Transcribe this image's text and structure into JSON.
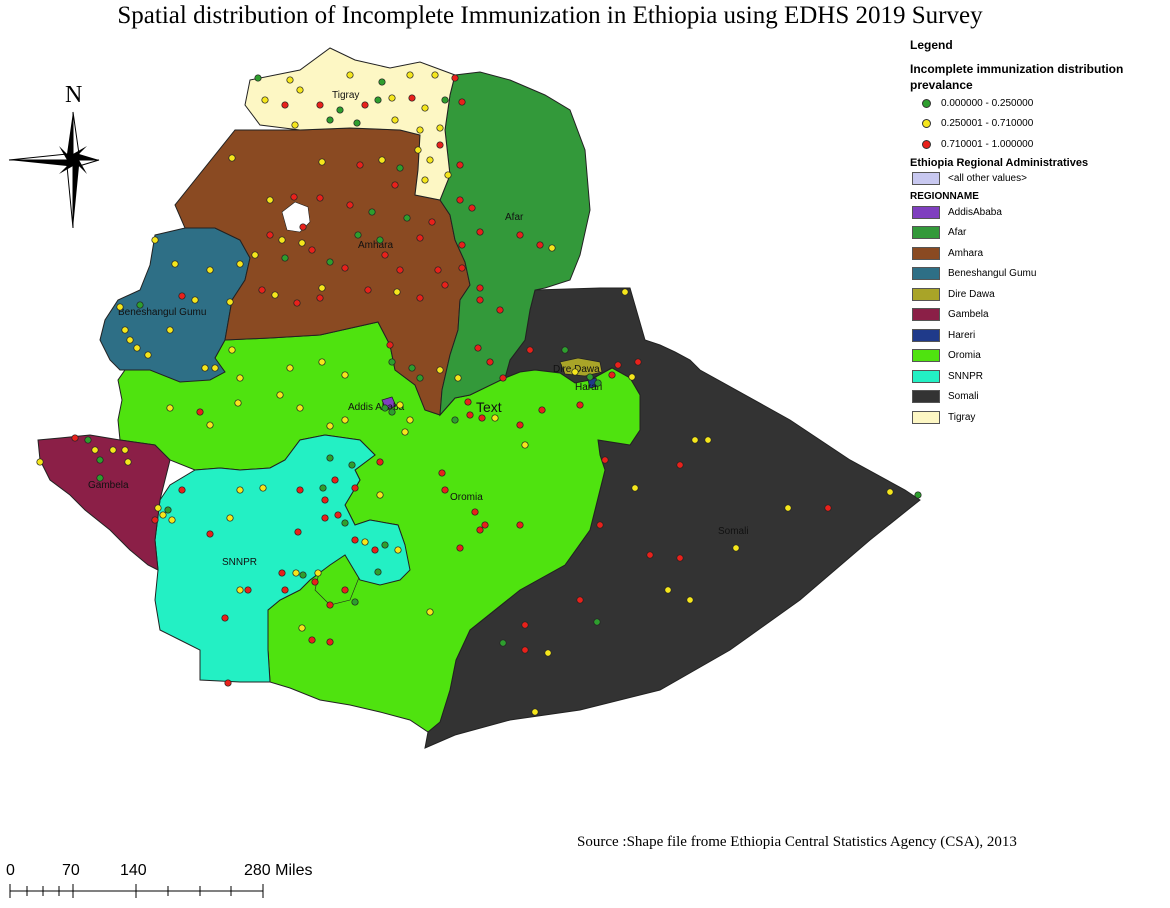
{
  "title": "Spatial distribution of Incomplete Immunization in Ethiopia using EDHS 2019 Survey",
  "north_label": "N",
  "source": "Source :Shape file frome Ethiopia Central Statistics Agency (CSA), 2013",
  "scale_bar": {
    "labels": [
      "0",
      "70",
      "140",
      "280 Miles"
    ],
    "unit": "Miles"
  },
  "legend": {
    "title": "Legend",
    "points_title": "Incomplete immunization distribution",
    "points_subtitle": "prevalance",
    "classes": [
      {
        "label": "0.000000 - 0.250000",
        "color": "#2e9e2e"
      },
      {
        "label": "0.250001 - 0.710000",
        "color": "#f5e61c"
      },
      {
        "label": "0.710001 - 1.000000",
        "color": "#e8211b"
      }
    ],
    "layer_title": "Ethiopia Regional Administratives",
    "other_values": {
      "label": "<all other values>",
      "color": "#c8c8f0"
    },
    "field_name": "REGIONNAME",
    "regions": [
      {
        "label": "AddisAbaba",
        "color": "#7f3fbf"
      },
      {
        "label": "Afar",
        "color": "#33993a"
      },
      {
        "label": "Amhara",
        "color": "#8a4a22"
      },
      {
        "label": "Beneshangul Gumu",
        "color": "#2e6f86"
      },
      {
        "label": "Dire Dawa",
        "color": "#a9a428"
      },
      {
        "label": "Gambela",
        "color": "#8b1f47"
      },
      {
        "label": "Hareri",
        "color": "#1f3a8a"
      },
      {
        "label": "Oromia",
        "color": "#4fe30f"
      },
      {
        "label": "SNNPR",
        "color": "#23f0c4"
      },
      {
        "label": "Somali",
        "color": "#333333"
      },
      {
        "label": "Tigray",
        "color": "#fdf7c4"
      }
    ]
  },
  "map_labels": {
    "tigray": "Tigray",
    "afar": "Afar",
    "amhara": "Amhara",
    "beneshangul": "Beneshangul Gumu",
    "dire_dawa": "Dire Dawa",
    "harari": "Harari",
    "addis": "Addis Ababa",
    "text": "Text",
    "gambela": "Gambela",
    "oromia": "Oromia",
    "snnpr": "SNNPR",
    "somali": "Somali"
  }
}
